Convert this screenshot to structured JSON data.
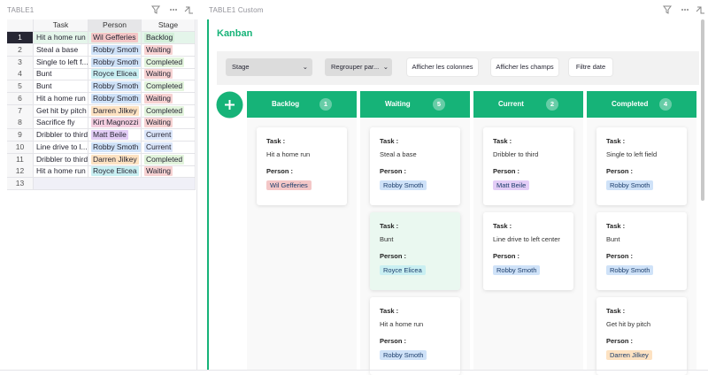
{
  "left_panel": {
    "title": "TABLE1",
    "table": {
      "headers": [
        "Task",
        "Person",
        "Stage"
      ],
      "rows": [
        {
          "row_number": "1",
          "task": "Hit a home run",
          "person": "Wil Gefferies",
          "person_color": "#f4c7c7",
          "stage": "Backlog",
          "stage_color": "#d3efd9"
        },
        {
          "row_number": "2",
          "task": "Steal a base",
          "person": "Robby Smoth",
          "person_color": "#cfe2f8",
          "stage": "Waiting",
          "stage_color": "#f7d2d2"
        },
        {
          "row_number": "3",
          "task": "Single to left f...",
          "person": "Robby Smoth",
          "person_color": "#cfe2f8",
          "stage": "Completed",
          "stage_color": "#e2f4dc"
        },
        {
          "row_number": "4",
          "task": "Bunt",
          "person": "Royce Elicea",
          "person_color": "#c9eff2",
          "stage": "Waiting",
          "stage_color": "#f7d2d2"
        },
        {
          "row_number": "5",
          "task": "Bunt",
          "person": "Robby Smoth",
          "person_color": "#cfe2f8",
          "stage": "Completed",
          "stage_color": "#e2f4dc"
        },
        {
          "row_number": "6",
          "task": "Hit a home run",
          "person": "Robby Smoth",
          "person_color": "#cfe2f8",
          "stage": "Waiting",
          "stage_color": "#f7d2d2"
        },
        {
          "row_number": "7",
          "task": "Get hit by pitch",
          "person": "Darren Jilkey",
          "person_color": "#fde2c2",
          "stage": "Completed",
          "stage_color": "#e2f4dc"
        },
        {
          "row_number": "8",
          "task": "Sacrifice fly",
          "person": "Kirt Magnozzi",
          "person_color": "#f5cfe0",
          "stage": "Waiting",
          "stage_color": "#f7d2d2"
        },
        {
          "row_number": "9",
          "task": "Dribbler to third",
          "person": "Matt Beile",
          "person_color": "#e3cdf6",
          "stage": "Current",
          "stage_color": "#dbe6fa"
        },
        {
          "row_number": "10",
          "task": "Line drive to l...",
          "person": "Robby Smoth",
          "person_color": "#cfe2f8",
          "stage": "Current",
          "stage_color": "#dbe6fa"
        },
        {
          "row_number": "11",
          "task": "Dribbler to third",
          "person": "Darren Jilkey",
          "person_color": "#fde2c2",
          "stage": "Completed",
          "stage_color": "#e2f4dc"
        },
        {
          "row_number": "12",
          "task": "Hit a home run",
          "person": "Royce Elicea",
          "person_color": "#c9eff2",
          "stage": "Waiting",
          "stage_color": "#f7d2d2"
        }
      ],
      "new_row_number": "13"
    }
  },
  "right_panel": {
    "title": "TABLE1 Custom",
    "heading": "Kanban",
    "toolbar": {
      "stage_select": "Stage",
      "group_select": "Regrouper par...",
      "buttons": [
        "Afficher les colonnes",
        "Afficher les champs",
        "Filtre date"
      ]
    },
    "task_label": "Task :",
    "person_label": "Person :",
    "columns": [
      {
        "name": "Backlog",
        "count": "1",
        "cards": [
          {
            "task": "Hit a home run",
            "person": "Wil Gefferies",
            "person_color": "#f4c7c7"
          }
        ]
      },
      {
        "name": "Waiting",
        "count": "5",
        "cards": [
          {
            "task": "Steal a base",
            "person": "Robby Smoth",
            "person_color": "#cfe2f8"
          },
          {
            "task": "Bunt",
            "person": "Royce Elicea",
            "person_color": "#c9eff2",
            "highlighted": true
          },
          {
            "task": "Hit a home run",
            "person": "Robby Smoth",
            "person_color": "#cfe2f8"
          }
        ]
      },
      {
        "name": "Current",
        "count": "2",
        "cards": [
          {
            "task": "Dribbler to third",
            "person": "Matt Beile",
            "person_color": "#e3cdf6"
          },
          {
            "task": "Line drive to left center",
            "person": "Robby Smoth",
            "person_color": "#cfe2f8"
          }
        ]
      },
      {
        "name": "Completed",
        "count": "4",
        "cards": [
          {
            "task": "Single to left field",
            "person": "Robby Smoth",
            "person_color": "#cfe2f8"
          },
          {
            "task": "Bunt",
            "person": "Robby Smoth",
            "person_color": "#cfe2f8"
          },
          {
            "task": "Get hit by pitch",
            "person": "Darren Jilkey",
            "person_color": "#fde2c2"
          }
        ]
      }
    ]
  }
}
